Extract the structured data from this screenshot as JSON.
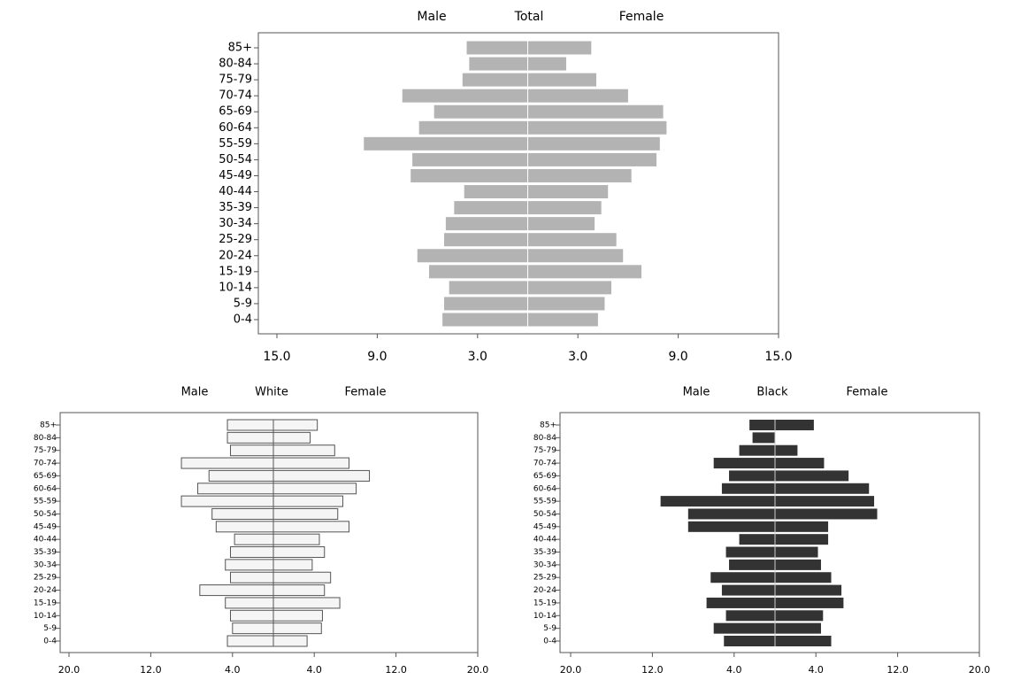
{
  "chart_data": [
    {
      "type": "pyramid",
      "title": "Total",
      "categories": [
        "0-4",
        "5-9",
        "10-14",
        "15-19",
        "20-24",
        "25-29",
        "30-34",
        "35-39",
        "40-44",
        "45-49",
        "50-54",
        "55-59",
        "60-64",
        "65-69",
        "70-74",
        "75-79",
        "80-84",
        "85+"
      ],
      "series": [
        {
          "name": "Male",
          "color": "#b3b3b3",
          "values": [
            5.1,
            5.0,
            4.7,
            5.9,
            6.6,
            5.0,
            4.9,
            4.4,
            3.8,
            7.0,
            6.9,
            9.8,
            6.5,
            5.6,
            7.5,
            3.9,
            3.5,
            3.65
          ]
        },
        {
          "name": "Female",
          "color": "#b3b3b3",
          "values": [
            4.2,
            4.6,
            5.0,
            6.8,
            5.7,
            5.3,
            4.0,
            4.4,
            4.8,
            6.2,
            7.7,
            7.9,
            8.3,
            8.1,
            6.0,
            4.1,
            2.3,
            3.8
          ]
        }
      ],
      "xlim": [
        -15,
        15
      ],
      "xticks": [
        {
          "value": -15,
          "label": "15.0"
        },
        {
          "value": -9,
          "label": "9.0"
        },
        {
          "value": -3,
          "label": "3.0"
        },
        {
          "value": 3,
          "label": "3.0"
        },
        {
          "value": 9,
          "label": "9.0"
        },
        {
          "value": 15,
          "label": "15.0"
        }
      ]
    },
    {
      "type": "pyramid",
      "title": "White",
      "categories": [
        "0-4",
        "5-9",
        "10-14",
        "15-19",
        "20-24",
        "25-29",
        "30-34",
        "35-39",
        "40-44",
        "45-49",
        "50-54",
        "55-59",
        "60-64",
        "65-69",
        "70-74",
        "75-79",
        "80-84",
        "85+"
      ],
      "series": [
        {
          "name": "Male",
          "color": "#f5f5f5",
          "values": [
            4.5,
            4.0,
            4.2,
            4.7,
            7.2,
            4.2,
            4.7,
            4.2,
            3.8,
            5.6,
            6.0,
            9.0,
            7.4,
            6.3,
            9.0,
            4.2,
            4.5,
            4.5
          ]
        },
        {
          "name": "Female",
          "color": "#f5f5f5",
          "values": [
            3.3,
            4.7,
            4.8,
            6.5,
            5.0,
            5.6,
            3.8,
            5.0,
            4.5,
            7.4,
            6.3,
            6.8,
            8.1,
            9.4,
            7.4,
            6.0,
            3.6,
            4.3
          ]
        }
      ],
      "xlim": [
        -20,
        20
      ],
      "xticks": [
        {
          "value": -20,
          "label": "20.0"
        },
        {
          "value": -12,
          "label": "12.0"
        },
        {
          "value": -4,
          "label": "4.0"
        },
        {
          "value": 4,
          "label": "4.0"
        },
        {
          "value": 12,
          "label": "12.0"
        },
        {
          "value": 20,
          "label": "20.0"
        }
      ]
    },
    {
      "type": "pyramid",
      "title": "Black",
      "categories": [
        "0-4",
        "5-9",
        "10-14",
        "15-19",
        "20-24",
        "25-29",
        "30-34",
        "35-39",
        "40-44",
        "45-49",
        "50-54",
        "55-59",
        "60-64",
        "65-69",
        "70-74",
        "75-79",
        "80-84",
        "85+"
      ],
      "series": [
        {
          "name": "Male",
          "color": "#333333",
          "values": [
            5.0,
            6.0,
            4.8,
            6.7,
            5.2,
            6.3,
            4.5,
            4.8,
            3.5,
            8.5,
            8.5,
            11.2,
            5.2,
            4.5,
            6.0,
            3.5,
            2.2,
            2.5
          ]
        },
        {
          "name": "Female",
          "color": "#333333",
          "values": [
            5.5,
            4.5,
            4.7,
            6.7,
            6.5,
            5.5,
            4.5,
            4.2,
            5.2,
            5.2,
            10.0,
            9.7,
            9.2,
            7.2,
            4.8,
            2.2,
            0,
            3.8
          ]
        }
      ],
      "xlim": [
        -20,
        20
      ],
      "xticks": [
        {
          "value": -20,
          "label": "20.0"
        },
        {
          "value": -12,
          "label": "12.0"
        },
        {
          "value": -4,
          "label": "4.0"
        },
        {
          "value": 4,
          "label": "4.0"
        },
        {
          "value": 12,
          "label": "12.0"
        },
        {
          "value": 20,
          "label": "20.0"
        }
      ]
    }
  ]
}
